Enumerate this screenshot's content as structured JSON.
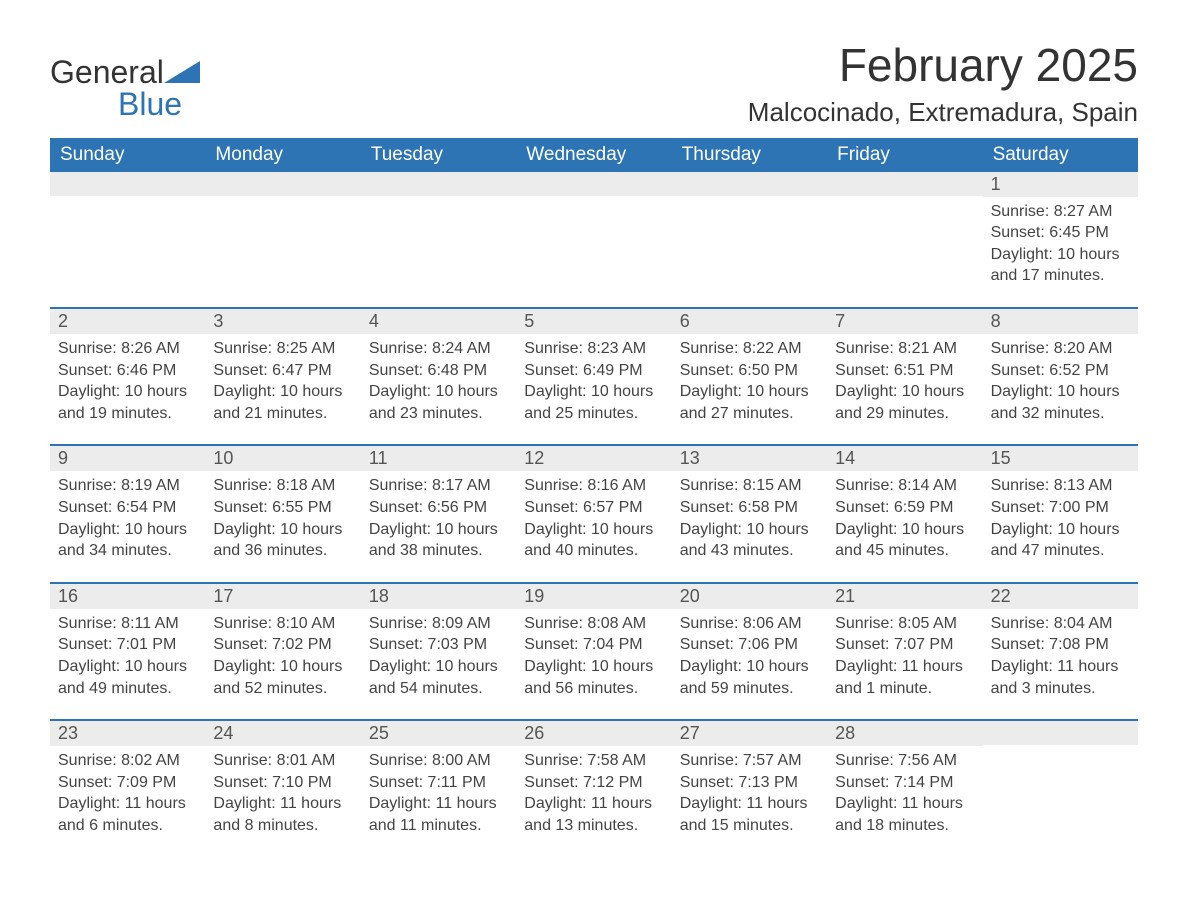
{
  "brand": {
    "general": "General",
    "blue": "Blue",
    "sail_color": "#2d74b5"
  },
  "header": {
    "title": "February 2025",
    "subtitle": "Malcocinado, Extremadura, Spain"
  },
  "colors": {
    "header_bg": "#2d74b5",
    "header_fg": "#ffffff",
    "daynum_bg": "#ececec",
    "border": "#2d74b5",
    "text": "#333333",
    "body_text": "#444444"
  },
  "daynames": [
    "Sunday",
    "Monday",
    "Tuesday",
    "Wednesday",
    "Thursday",
    "Friday",
    "Saturday"
  ],
  "weeks": [
    [
      null,
      null,
      null,
      null,
      null,
      null,
      {
        "n": "1",
        "sr": "Sunrise: 8:27 AM",
        "ss": "Sunset: 6:45 PM",
        "d1": "Daylight: 10 hours",
        "d2": "and 17 minutes."
      }
    ],
    [
      {
        "n": "2",
        "sr": "Sunrise: 8:26 AM",
        "ss": "Sunset: 6:46 PM",
        "d1": "Daylight: 10 hours",
        "d2": "and 19 minutes."
      },
      {
        "n": "3",
        "sr": "Sunrise: 8:25 AM",
        "ss": "Sunset: 6:47 PM",
        "d1": "Daylight: 10 hours",
        "d2": "and 21 minutes."
      },
      {
        "n": "4",
        "sr": "Sunrise: 8:24 AM",
        "ss": "Sunset: 6:48 PM",
        "d1": "Daylight: 10 hours",
        "d2": "and 23 minutes."
      },
      {
        "n": "5",
        "sr": "Sunrise: 8:23 AM",
        "ss": "Sunset: 6:49 PM",
        "d1": "Daylight: 10 hours",
        "d2": "and 25 minutes."
      },
      {
        "n": "6",
        "sr": "Sunrise: 8:22 AM",
        "ss": "Sunset: 6:50 PM",
        "d1": "Daylight: 10 hours",
        "d2": "and 27 minutes."
      },
      {
        "n": "7",
        "sr": "Sunrise: 8:21 AM",
        "ss": "Sunset: 6:51 PM",
        "d1": "Daylight: 10 hours",
        "d2": "and 29 minutes."
      },
      {
        "n": "8",
        "sr": "Sunrise: 8:20 AM",
        "ss": "Sunset: 6:52 PM",
        "d1": "Daylight: 10 hours",
        "d2": "and 32 minutes."
      }
    ],
    [
      {
        "n": "9",
        "sr": "Sunrise: 8:19 AM",
        "ss": "Sunset: 6:54 PM",
        "d1": "Daylight: 10 hours",
        "d2": "and 34 minutes."
      },
      {
        "n": "10",
        "sr": "Sunrise: 8:18 AM",
        "ss": "Sunset: 6:55 PM",
        "d1": "Daylight: 10 hours",
        "d2": "and 36 minutes."
      },
      {
        "n": "11",
        "sr": "Sunrise: 8:17 AM",
        "ss": "Sunset: 6:56 PM",
        "d1": "Daylight: 10 hours",
        "d2": "and 38 minutes."
      },
      {
        "n": "12",
        "sr": "Sunrise: 8:16 AM",
        "ss": "Sunset: 6:57 PM",
        "d1": "Daylight: 10 hours",
        "d2": "and 40 minutes."
      },
      {
        "n": "13",
        "sr": "Sunrise: 8:15 AM",
        "ss": "Sunset: 6:58 PM",
        "d1": "Daylight: 10 hours",
        "d2": "and 43 minutes."
      },
      {
        "n": "14",
        "sr": "Sunrise: 8:14 AM",
        "ss": "Sunset: 6:59 PM",
        "d1": "Daylight: 10 hours",
        "d2": "and 45 minutes."
      },
      {
        "n": "15",
        "sr": "Sunrise: 8:13 AM",
        "ss": "Sunset: 7:00 PM",
        "d1": "Daylight: 10 hours",
        "d2": "and 47 minutes."
      }
    ],
    [
      {
        "n": "16",
        "sr": "Sunrise: 8:11 AM",
        "ss": "Sunset: 7:01 PM",
        "d1": "Daylight: 10 hours",
        "d2": "and 49 minutes."
      },
      {
        "n": "17",
        "sr": "Sunrise: 8:10 AM",
        "ss": "Sunset: 7:02 PM",
        "d1": "Daylight: 10 hours",
        "d2": "and 52 minutes."
      },
      {
        "n": "18",
        "sr": "Sunrise: 8:09 AM",
        "ss": "Sunset: 7:03 PM",
        "d1": "Daylight: 10 hours",
        "d2": "and 54 minutes."
      },
      {
        "n": "19",
        "sr": "Sunrise: 8:08 AM",
        "ss": "Sunset: 7:04 PM",
        "d1": "Daylight: 10 hours",
        "d2": "and 56 minutes."
      },
      {
        "n": "20",
        "sr": "Sunrise: 8:06 AM",
        "ss": "Sunset: 7:06 PM",
        "d1": "Daylight: 10 hours",
        "d2": "and 59 minutes."
      },
      {
        "n": "21",
        "sr": "Sunrise: 8:05 AM",
        "ss": "Sunset: 7:07 PM",
        "d1": "Daylight: 11 hours",
        "d2": "and 1 minute."
      },
      {
        "n": "22",
        "sr": "Sunrise: 8:04 AM",
        "ss": "Sunset: 7:08 PM",
        "d1": "Daylight: 11 hours",
        "d2": "and 3 minutes."
      }
    ],
    [
      {
        "n": "23",
        "sr": "Sunrise: 8:02 AM",
        "ss": "Sunset: 7:09 PM",
        "d1": "Daylight: 11 hours",
        "d2": "and 6 minutes."
      },
      {
        "n": "24",
        "sr": "Sunrise: 8:01 AM",
        "ss": "Sunset: 7:10 PM",
        "d1": "Daylight: 11 hours",
        "d2": "and 8 minutes."
      },
      {
        "n": "25",
        "sr": "Sunrise: 8:00 AM",
        "ss": "Sunset: 7:11 PM",
        "d1": "Daylight: 11 hours",
        "d2": "and 11 minutes."
      },
      {
        "n": "26",
        "sr": "Sunrise: 7:58 AM",
        "ss": "Sunset: 7:12 PM",
        "d1": "Daylight: 11 hours",
        "d2": "and 13 minutes."
      },
      {
        "n": "27",
        "sr": "Sunrise: 7:57 AM",
        "ss": "Sunset: 7:13 PM",
        "d1": "Daylight: 11 hours",
        "d2": "and 15 minutes."
      },
      {
        "n": "28",
        "sr": "Sunrise: 7:56 AM",
        "ss": "Sunset: 7:14 PM",
        "d1": "Daylight: 11 hours",
        "d2": "and 18 minutes."
      },
      null
    ]
  ]
}
